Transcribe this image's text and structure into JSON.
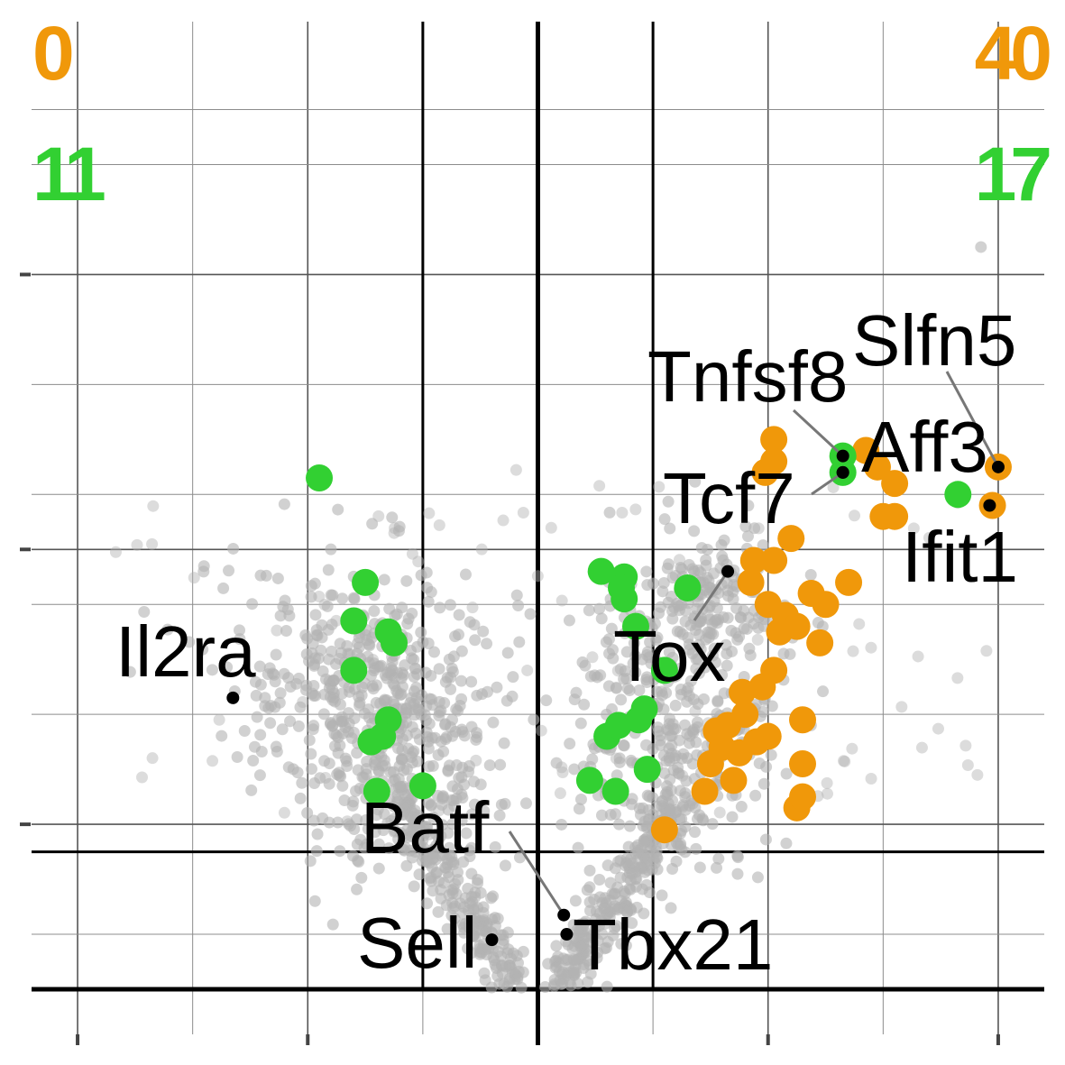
{
  "chart_data": {
    "type": "scatter",
    "title": "",
    "xlabel": "",
    "ylabel": "",
    "xlim": [
      -8.8,
      8.8
    ],
    "ylim": [
      0,
      17.6
    ],
    "xticks": [
      -8,
      -4,
      0,
      4,
      8
    ],
    "yticks": [
      3,
      8,
      13
    ],
    "grid": true,
    "thresholds": {
      "x": [
        -2,
        2
      ],
      "y": 2.5
    },
    "colors": {
      "up": "#f0980a",
      "down": "#32d032",
      "background": "#b2b2b2",
      "label_point": "#000000"
    },
    "counts": {
      "left_top": "0",
      "right_top": "40",
      "left_bottom": "11",
      "right_bottom": "17"
    },
    "labeled_genes": [
      {
        "name": "Slfn5",
        "x": 8.0,
        "y": 9.5
      },
      {
        "name": "Tnfsf8",
        "x": 5.3,
        "y": 9.7
      },
      {
        "name": "Aff3",
        "x": 5.3,
        "y": 9.4
      },
      {
        "name": "Tcf7",
        "x": 5.3,
        "y": 9.4
      },
      {
        "name": "Ifit1",
        "x": 7.85,
        "y": 8.8
      },
      {
        "name": "Tox",
        "x": 3.3,
        "y": 7.6
      },
      {
        "name": "Il2ra",
        "x": -5.3,
        "y": 5.3
      },
      {
        "name": "Batf",
        "x": 0.45,
        "y": 1.35
      },
      {
        "name": "Tbx21",
        "x": 0.5,
        "y": 1.0
      },
      {
        "name": "Sell",
        "x": -0.8,
        "y": 0.9
      }
    ],
    "series": [
      {
        "key": "down",
        "x": [
          -3.8,
          -3.0,
          -3.2,
          -2.6,
          -2.5,
          -3.2,
          -2.6,
          -2.7,
          -2.9,
          -2.8,
          -2.0
        ],
        "y": [
          9.3,
          7.4,
          6.7,
          6.5,
          6.3,
          5.8,
          4.9,
          4.6,
          4.5,
          3.6,
          3.7
        ]
      },
      {
        "key": "up",
        "x": [
          4.1,
          4.1,
          3.95,
          4.4,
          3.75,
          5.7,
          6.0,
          3.7,
          4.1,
          4.0,
          4.3,
          4.5,
          4.75,
          5.0,
          4.2,
          5.4,
          4.9,
          4.1,
          3.9,
          3.6,
          4.6,
          3.55,
          4.0,
          3.3,
          3.8,
          4.6,
          3.0,
          2.9,
          3.2,
          4.5,
          4.6,
          3.5,
          3.4,
          5.9,
          3.1,
          2.2,
          6.2,
          8.0,
          7.9,
          6.2
        ],
        "y": [
          10.0,
          9.6,
          9.4,
          8.2,
          7.8,
          9.8,
          8.6,
          7.4,
          7.8,
          7.0,
          6.8,
          6.6,
          7.2,
          7.0,
          6.5,
          7.4,
          6.3,
          5.8,
          5.5,
          5.0,
          4.9,
          5.4,
          4.6,
          4.8,
          4.5,
          4.1,
          4.1,
          3.6,
          4.4,
          3.3,
          3.5,
          4.3,
          3.8,
          9.5,
          4.7,
          2.9,
          8.6,
          9.5,
          8.8,
          9.2
        ]
      },
      {
        "key": "down",
        "x": [
          1.1,
          1.5,
          1.5,
          2.6,
          2.2,
          1.7,
          1.85,
          1.2,
          1.75,
          1.4,
          1.35,
          0.9,
          1.9,
          5.3,
          5.3,
          7.3,
          1.45
        ],
        "y": [
          7.6,
          7.1,
          7.5,
          7.3,
          5.8,
          6.6,
          5.1,
          4.6,
          4.9,
          4.8,
          3.6,
          3.8,
          4.0,
          9.7,
          9.4,
          9.0,
          7.3
        ]
      }
    ]
  }
}
